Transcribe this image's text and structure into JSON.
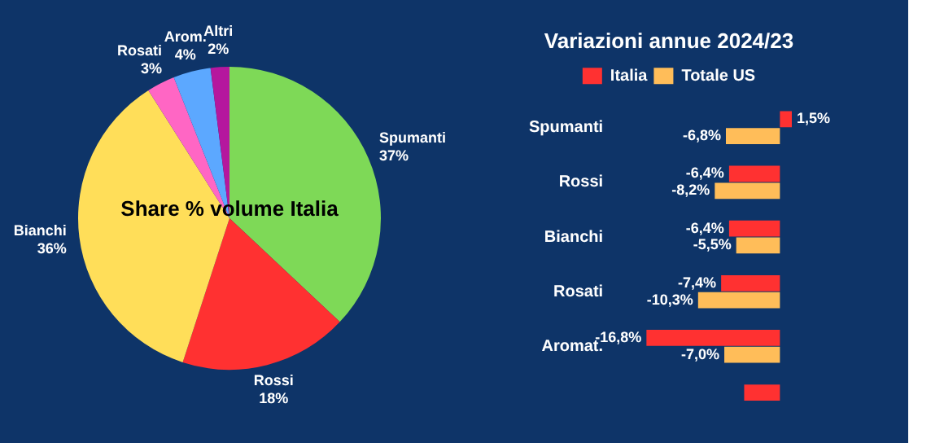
{
  "chart_data": [
    {
      "type": "pie",
      "title": "Share % volume Italia",
      "categories": [
        "Spumanti",
        "Rossi",
        "Bianchi",
        "Rosati",
        "Arom.",
        "Altri"
      ],
      "values": [
        37,
        18,
        36,
        3,
        4,
        2
      ],
      "colors": [
        "#7ed957",
        "#ff3131",
        "#ffde59",
        "#ff66c4",
        "#5ca8ff",
        "#b5179e"
      ],
      "value_labels": [
        "37%",
        "18%",
        "36%",
        "3%",
        "4%",
        "2%"
      ],
      "legend": false
    },
    {
      "type": "bar",
      "orientation": "horizontal",
      "title": "Variazioni annue 2024/23",
      "categories": [
        "Spumanti",
        "Rossi",
        "Bianchi",
        "Rosati",
        "Aromat.",
        null
      ],
      "legend": "top",
      "series": [
        {
          "name": "Italia",
          "color": "#ff3131",
          "values": [
            1.5,
            -6.4,
            -6.4,
            -7.4,
            -16.8,
            -4.5
          ],
          "value_labels": [
            "1,5%",
            "-6,4%",
            "-6,4%",
            "-7,4%",
            "-16,8%",
            null
          ]
        },
        {
          "name": "Totale US",
          "color": "#ffbd59",
          "values": [
            -6.8,
            -8.2,
            -5.5,
            -10.3,
            -7.0,
            null
          ],
          "value_labels": [
            "-6,8%",
            "-8,2%",
            "-5,5%",
            "-10,3%",
            "-7,0%",
            null
          ]
        }
      ]
    }
  ]
}
